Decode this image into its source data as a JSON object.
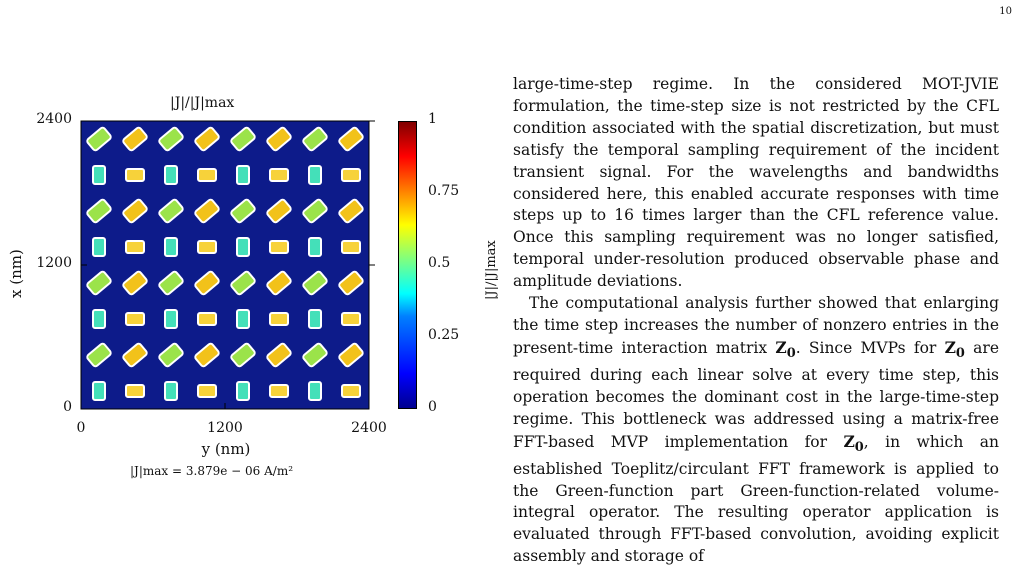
{
  "page_number": "10",
  "figure": {
    "title": "|J|/|J|max",
    "y_axis_label": "x (nm)",
    "x_axis_label": "y (nm)",
    "colorbar_label": "|J|/|J|max",
    "caption": "|J|max = 3.879e − 06 A/m²",
    "colormap": [
      "#00008f",
      "#0000ff",
      "#007fff",
      "#00ffff",
      "#7fff7f",
      "#ffff00",
      "#ff7f00",
      "#ff0000",
      "#800000"
    ],
    "background_color": "#0d1b8a"
  },
  "chart_data": {
    "type": "heatmap",
    "title": "|J|/|J|max",
    "xlabel": "y (nm)",
    "ylabel": "x (nm)",
    "xlim": [
      0,
      2400
    ],
    "ylim": [
      0,
      2400
    ],
    "x_ticks": [
      "0",
      "1200",
      "2400"
    ],
    "y_ticks": [
      "0",
      "1200",
      "2400"
    ],
    "colorbar": {
      "range": [
        0,
        1
      ],
      "ticks": [
        "0",
        "0.25",
        "0.5",
        "0.75",
        "1"
      ]
    },
    "grid": {
      "rows": 8,
      "cols": 8,
      "row_types": [
        "diamond",
        "rect",
        "diamond",
        "rect",
        "diamond",
        "rect",
        "diamond",
        "rect"
      ]
    }
  },
  "text": {
    "p1": "large-time-step regime. In the considered MOT-JVIE formulation, the time-step size is not restricted by the CFL condition associated with the spatial discretization, but must satisfy the temporal sampling requirement of the incident transient signal. For the wavelengths and bandwidths considered here, this enabled accurate responses with time steps up to 16 times larger than the CFL reference value. Once this sampling requirement was no longer satisfied, temporal under-resolution produced observable phase and amplitude deviations.",
    "p2_a": "The computational analysis further showed that enlarging the time step increases the number of nonzero entries in the present-time interaction matrix ",
    "p2_z": "Z",
    "p2_b": ". Since MVPs for ",
    "p2_c": " are required during each linear solve at every time step, this operation becomes the dominant cost in the large-time-step regime. This bottleneck was addressed using a matrix-free FFT-based MVP implementation for ",
    "p2_d": ", in which an established Toeplitz/circulant FFT framework is applied to the Green-function part Green-function-related volume-integral operator. The resulting operator application is evaluated through FFT-based convolution, avoiding explicit assembly and storage of"
  }
}
